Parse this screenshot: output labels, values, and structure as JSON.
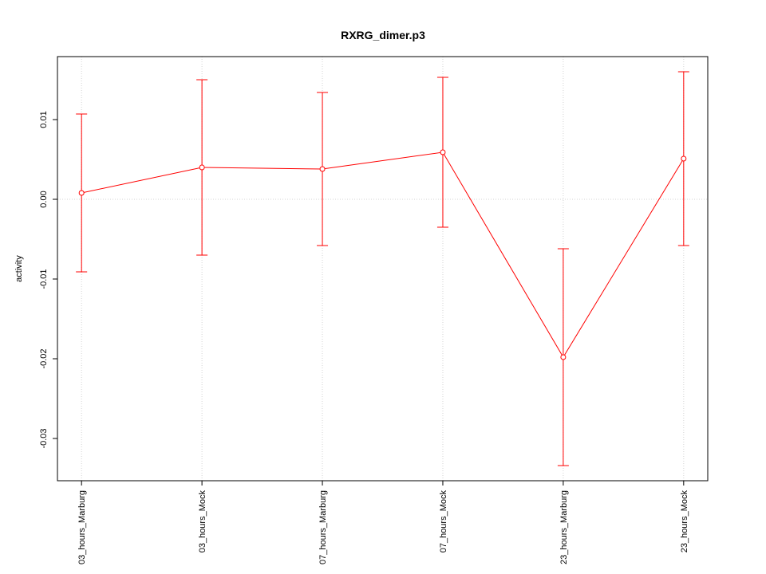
{
  "chart_data": {
    "type": "line",
    "title": "RXRG_dimer.p3",
    "y_label": "activity",
    "categories": [
      "03_hours_Marburg",
      "03_hours_Mock",
      "07_hours_Marburg",
      "07_hours_Mock",
      "23_hours_Marburg",
      "23_hours_Mock"
    ],
    "values": [
      0.0008,
      0.004,
      0.0038,
      0.0059,
      -0.0198,
      0.0051
    ],
    "errors": [
      0.0099,
      0.011,
      0.0096,
      0.0094,
      0.0136,
      0.0109
    ],
    "color": "#ff0000",
    "ylim": [
      -0.0353,
      0.0179
    ],
    "yticks": [
      0.01,
      {
        "value": 0,
        "label": "0.00"
      },
      -0.01,
      -0.02,
      -0.03
    ],
    "hline": 0,
    "grid": true
  }
}
